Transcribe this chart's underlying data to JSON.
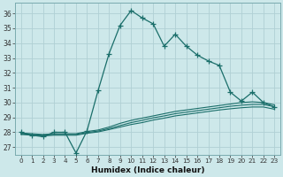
{
  "title": "",
  "xlabel": "Humidex (Indice chaleur)",
  "ylabel": "",
  "bg_color": "#cde8ea",
  "grid_color": "#b0d0d4",
  "line_color": "#1a6e6a",
  "xlim": [
    -0.5,
    23.5
  ],
  "ylim": [
    26.5,
    36.7
  ],
  "yticks": [
    27,
    28,
    29,
    30,
    31,
    32,
    33,
    34,
    35,
    36
  ],
  "xticks": [
    0,
    1,
    2,
    3,
    4,
    5,
    6,
    7,
    8,
    9,
    10,
    11,
    12,
    13,
    14,
    15,
    16,
    17,
    18,
    19,
    20,
    21,
    22,
    23
  ],
  "series1": [
    28.0,
    27.8,
    27.7,
    28.0,
    28.0,
    26.6,
    28.1,
    30.8,
    33.3,
    35.2,
    36.2,
    35.7,
    35.3,
    33.8,
    34.6,
    33.8,
    33.2,
    32.8,
    32.5,
    30.7,
    30.1,
    30.7,
    30.0,
    29.7
  ],
  "series2": [
    27.95,
    27.9,
    27.85,
    27.9,
    27.9,
    27.9,
    28.05,
    28.15,
    28.35,
    28.6,
    28.8,
    28.95,
    29.1,
    29.25,
    29.4,
    29.5,
    29.6,
    29.7,
    29.8,
    29.9,
    30.0,
    30.05,
    30.0,
    29.85
  ],
  "series3": [
    27.9,
    27.85,
    27.8,
    27.85,
    27.85,
    27.85,
    27.98,
    28.08,
    28.25,
    28.45,
    28.65,
    28.8,
    28.97,
    29.1,
    29.25,
    29.35,
    29.45,
    29.55,
    29.65,
    29.75,
    29.82,
    29.87,
    29.87,
    29.72
  ],
  "series4": [
    27.85,
    27.8,
    27.75,
    27.8,
    27.8,
    27.8,
    27.93,
    28.02,
    28.18,
    28.35,
    28.52,
    28.65,
    28.82,
    28.95,
    29.1,
    29.2,
    29.3,
    29.4,
    29.5,
    29.58,
    29.65,
    29.7,
    29.7,
    29.55
  ]
}
